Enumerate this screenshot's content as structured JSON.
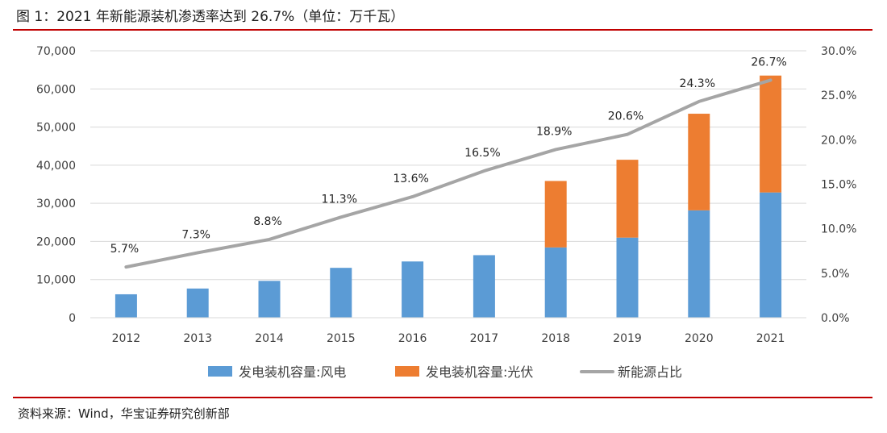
{
  "header": {
    "title": "图 1：2021 年新能源装机渗透率达到 26.7%（单位：万千瓦）"
  },
  "footer": {
    "source": "资料来源：Wind，华宝证券研究创新部"
  },
  "colors": {
    "wind": "#5b9bd5",
    "solar": "#ed7d31",
    "share": "#a5a5a5",
    "accent": "#c00000"
  },
  "chart_data": {
    "type": "bar",
    "stacked": true,
    "categories": [
      "2012",
      "2013",
      "2014",
      "2015",
      "2016",
      "2017",
      "2018",
      "2019",
      "2020",
      "2021"
    ],
    "series": [
      {
        "name": "发电装机容量:风电",
        "type": "bar",
        "axis": "left",
        "values": [
          6142,
          7652,
          9657,
          13075,
          14747,
          16400,
          18426,
          21005,
          28153,
          32848
        ]
      },
      {
        "name": "发电装机容量:光伏",
        "type": "bar",
        "axis": "left",
        "values": [
          0,
          0,
          0,
          0,
          0,
          0,
          17433,
          20418,
          25343,
          30656
        ]
      },
      {
        "name": "新能源占比",
        "type": "line",
        "axis": "right",
        "values": [
          5.7,
          7.3,
          8.8,
          11.3,
          13.6,
          16.5,
          18.9,
          20.6,
          24.3,
          26.7
        ],
        "labels": [
          "5.7%",
          "7.3%",
          "8.8%",
          "11.3%",
          "13.6%",
          "16.5%",
          "18.9%",
          "20.6%",
          "24.3%",
          "26.7%"
        ]
      }
    ],
    "y_left": {
      "ylim": [
        0,
        70000
      ],
      "ticks": [
        "0",
        "10,000",
        "20,000",
        "30,000",
        "40,000",
        "50,000",
        "60,000",
        "70,000"
      ]
    },
    "y_right": {
      "ylim": [
        0,
        30
      ],
      "ticks": [
        "0.0%",
        "5.0%",
        "10.0%",
        "15.0%",
        "20.0%",
        "25.0%",
        "30.0%"
      ]
    },
    "legend": {
      "position": "bottom",
      "items": [
        "发电装机容量:风电",
        "发电装机容量:光伏",
        "新能源占比"
      ]
    },
    "grid": true
  }
}
